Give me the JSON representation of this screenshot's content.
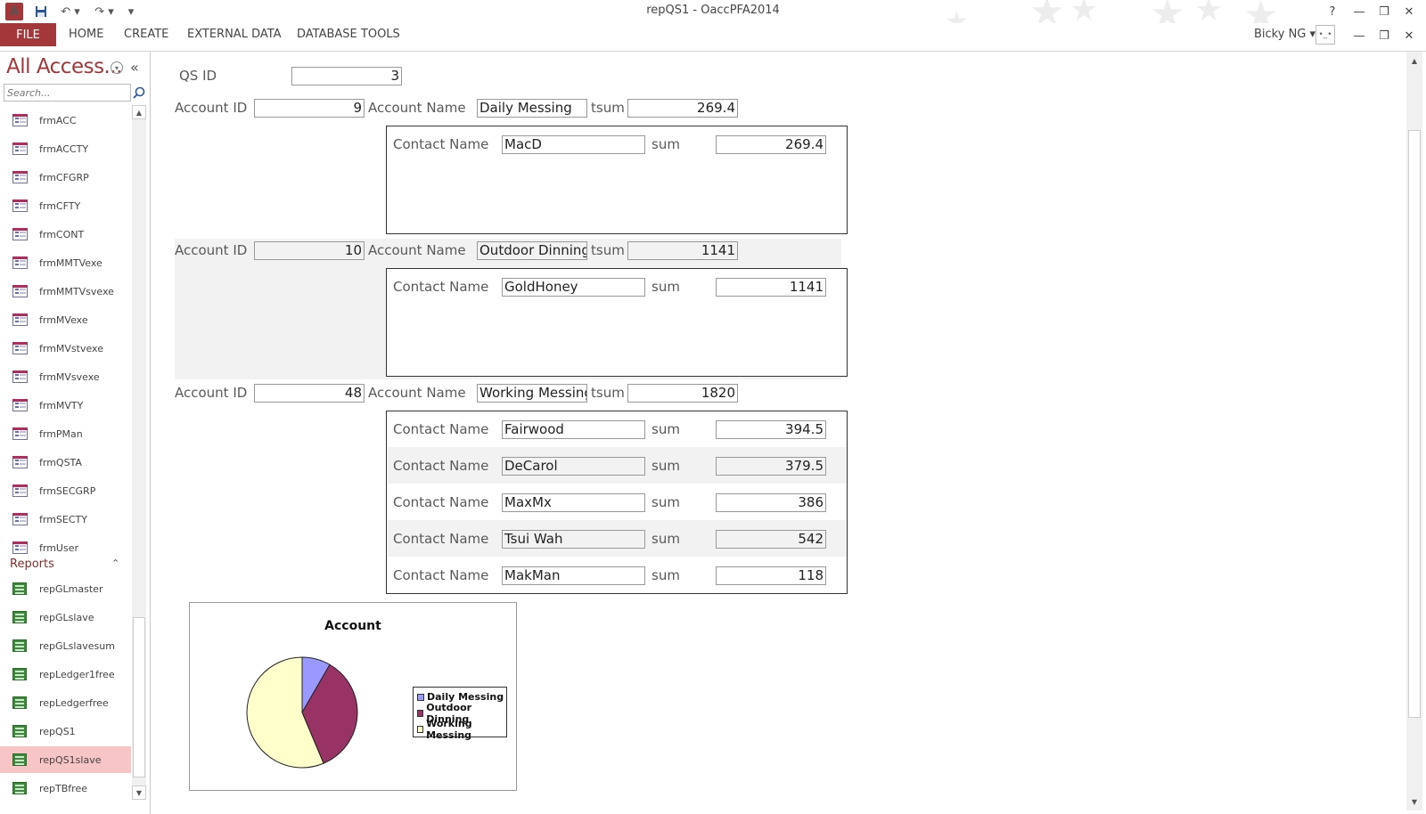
{
  "app": {
    "title": "repQS1 - OaccPFA2014",
    "icon_label": "A",
    "user": "Bicky NG",
    "help": "?",
    "quick_access": [
      "save-icon",
      "undo-icon",
      "redo-icon"
    ]
  },
  "ribbon": {
    "file": "FILE",
    "tabs": [
      "HOME",
      "CREATE",
      "EXTERNAL DATA",
      "DATABASE TOOLS"
    ]
  },
  "nav": {
    "title": "All Access...",
    "search_placeholder": "Search...",
    "forms": [
      "frmACC",
      "frmACCTY",
      "frmCFGRP",
      "frmCFTY",
      "frmCONT",
      "frmMMTVexe",
      "frmMMTVsvexe",
      "frmMVexe",
      "frmMVstvexe",
      "frmMVsvexe",
      "frmMVTY",
      "frmPMan",
      "frmQSTA",
      "frmSECGRP",
      "frmSECTY",
      "frmUser"
    ],
    "reports_header": "Reports",
    "reports": [
      "repGLmaster",
      "repGLslave",
      "repGLslavesum",
      "repLedger1free",
      "repLedgerfree",
      "repQS1",
      "repQS1slave",
      "repTBfree"
    ],
    "selected_report": "repQS1slave"
  },
  "report": {
    "qs_label": "QS ID",
    "qs_value": "3",
    "labels": {
      "account_id": "Account ID",
      "account_name": "Account Name",
      "tsum": "tsum",
      "contact_name": "Contact Name",
      "sum": "sum"
    },
    "accounts": [
      {
        "id": "9",
        "name": "Daily Messing",
        "tsum": "269.4",
        "contacts": [
          {
            "name": "MacD",
            "sum": "269.4"
          }
        ]
      },
      {
        "id": "10",
        "name": "Outdoor Dinning",
        "tsum": "1141",
        "contacts": [
          {
            "name": "GoldHoney",
            "sum": "1141"
          }
        ]
      },
      {
        "id": "48",
        "name": "Working Messing",
        "tsum": "1820",
        "contacts": [
          {
            "name": "Fairwood",
            "sum": "394.5"
          },
          {
            "name": "DeCarol",
            "sum": "379.5"
          },
          {
            "name": "MaxMx",
            "sum": "386"
          },
          {
            "name": "Tsui Wah",
            "sum": "542"
          },
          {
            "name": "MakMan",
            "sum": "118"
          }
        ]
      }
    ]
  },
  "chart_data": {
    "type": "pie",
    "title": "Account",
    "categories": [
      "Daily Messing",
      "Outdoor Dinning",
      "Working Messing"
    ],
    "values": [
      269.4,
      1141,
      1820
    ],
    "colors": [
      "#9999ff",
      "#993366",
      "#ffffcc"
    ],
    "legend": "right"
  }
}
